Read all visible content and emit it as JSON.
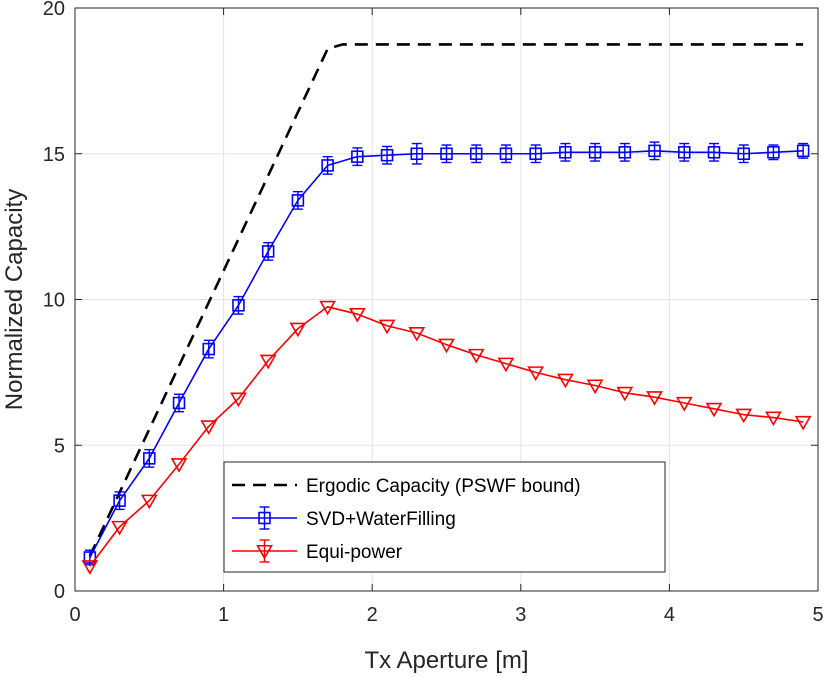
{
  "chart_data": {
    "type": "line",
    "title": "",
    "xlabel": "Tx Aperture [m]",
    "ylabel": "Normalized Capacity",
    "xlim": [
      0,
      5
    ],
    "ylim": [
      0,
      20
    ],
    "xticks": [
      "0",
      "1",
      "2",
      "3",
      "4",
      "5"
    ],
    "yticks": [
      "0",
      "5",
      "10",
      "15",
      "20"
    ],
    "grid": true,
    "legend_position": "bottom-center",
    "series": [
      {
        "name": "Ergodic Capacity (PSWF bound)",
        "style": "dashed",
        "color": "#000000",
        "marker": "none",
        "x": [
          0.1,
          1.7,
          1.8,
          4.9
        ],
        "y": [
          1.2,
          18.6,
          18.75,
          18.75
        ]
      },
      {
        "name": "SVD+WaterFilling",
        "style": "solid",
        "color": "#0000ff",
        "marker": "square",
        "x": [
          0.1,
          0.3,
          0.5,
          0.7,
          0.9,
          1.1,
          1.3,
          1.5,
          1.7,
          1.9,
          2.1,
          2.3,
          2.5,
          2.7,
          2.9,
          3.1,
          3.3,
          3.5,
          3.7,
          3.9,
          4.1,
          4.3,
          4.5,
          4.7,
          4.9
        ],
        "y": [
          1.15,
          3.1,
          4.55,
          6.45,
          8.3,
          9.8,
          11.65,
          13.4,
          14.6,
          14.9,
          14.95,
          15.0,
          15.0,
          15.0,
          15.0,
          15.0,
          15.05,
          15.05,
          15.05,
          15.1,
          15.05,
          15.05,
          15.0,
          15.05,
          15.1
        ],
        "err": [
          0.25,
          0.3,
          0.3,
          0.3,
          0.3,
          0.3,
          0.3,
          0.3,
          0.3,
          0.3,
          0.3,
          0.35,
          0.3,
          0.3,
          0.3,
          0.3,
          0.3,
          0.3,
          0.3,
          0.3,
          0.3,
          0.3,
          0.3,
          0.25,
          0.25
        ]
      },
      {
        "name": "Equi-power",
        "style": "solid",
        "color": "#ff0000",
        "marker": "triangle-down",
        "x": [
          0.1,
          0.3,
          0.5,
          0.7,
          0.9,
          1.1,
          1.3,
          1.5,
          1.7,
          1.9,
          2.1,
          2.3,
          2.5,
          2.7,
          2.9,
          3.1,
          3.3,
          3.5,
          3.7,
          3.9,
          4.1,
          4.3,
          4.5,
          4.7,
          4.9
        ],
        "y": [
          0.85,
          2.2,
          3.1,
          4.35,
          5.65,
          6.6,
          7.9,
          9.0,
          9.75,
          9.5,
          9.1,
          8.85,
          8.45,
          8.1,
          7.8,
          7.5,
          7.25,
          7.05,
          6.8,
          6.65,
          6.45,
          6.25,
          6.05,
          5.95,
          5.8
        ]
      }
    ]
  }
}
